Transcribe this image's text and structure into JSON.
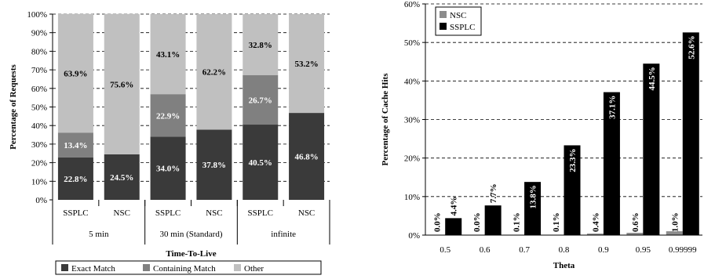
{
  "chart_data": [
    {
      "type": "bar",
      "stacked": true,
      "xlabel": "Time-To-Live",
      "ylabel": "Percentage of Requests",
      "ylim": [
        0,
        100
      ],
      "yticks": [
        "0%",
        "10%",
        "20%",
        "30%",
        "40%",
        "50%",
        "60%",
        "70%",
        "80%",
        "90%",
        "100%"
      ],
      "grid": true,
      "legend_position": "bottom",
      "categories": [
        "SSPLC",
        "NSC",
        "SSPLC",
        "NSC",
        "SSPLC",
        "NSC"
      ],
      "groups": [
        "5 min",
        "30 min (Standard)",
        "infinite"
      ],
      "series": [
        {
          "name": "Exact Match",
          "color": "#3a3a3a",
          "values": [
            22.8,
            24.5,
            34.0,
            37.8,
            40.5,
            46.8
          ],
          "labels": [
            "22.8%",
            "24.5%",
            "34.0%",
            "37.8%",
            "40.5%",
            "46.8%"
          ]
        },
        {
          "name": "Containing Match",
          "color": "#808080",
          "values": [
            13.4,
            0,
            22.9,
            0,
            26.7,
            0
          ],
          "labels": [
            "13.4%",
            "",
            "22.9%",
            "",
            "26.7%",
            ""
          ]
        },
        {
          "name": "Other",
          "color": "#c0c0c0",
          "values": [
            63.9,
            75.6,
            43.1,
            62.2,
            32.8,
            53.2
          ],
          "labels": [
            "63.9%",
            "75.6%",
            "43.1%",
            "62.2%",
            "32.8%",
            "53.2%"
          ]
        }
      ]
    },
    {
      "type": "bar",
      "xlabel": "Theta",
      "ylabel": "Percentage of Cache Hits",
      "ylim": [
        0,
        60
      ],
      "yticks": [
        "0%",
        "10%",
        "20%",
        "30%",
        "40%",
        "50%",
        "60%"
      ],
      "grid": true,
      "legend_position": "top-left",
      "categories": [
        "0.5",
        "0.6",
        "0.7",
        "0.8",
        "0.9",
        "0.95",
        "0.99999"
      ],
      "series": [
        {
          "name": "NSC",
          "color": "#8c8c8c",
          "values": [
            0.0,
            0.0,
            0.1,
            0.1,
            0.4,
            0.6,
            1.0
          ],
          "labels": [
            "0.0%",
            "0.0%",
            "0.1%",
            "0.1%",
            "0.4%",
            "0.6%",
            "1.0%"
          ]
        },
        {
          "name": "SSPLC",
          "color": "#000000",
          "values": [
            4.4,
            7.7,
            13.8,
            23.3,
            37.1,
            44.5,
            52.6
          ],
          "labels": [
            "4.4%",
            "7.7%",
            "13.8%",
            "23.3%",
            "37.1%",
            "44.5%",
            "52.6%"
          ]
        }
      ]
    }
  ]
}
